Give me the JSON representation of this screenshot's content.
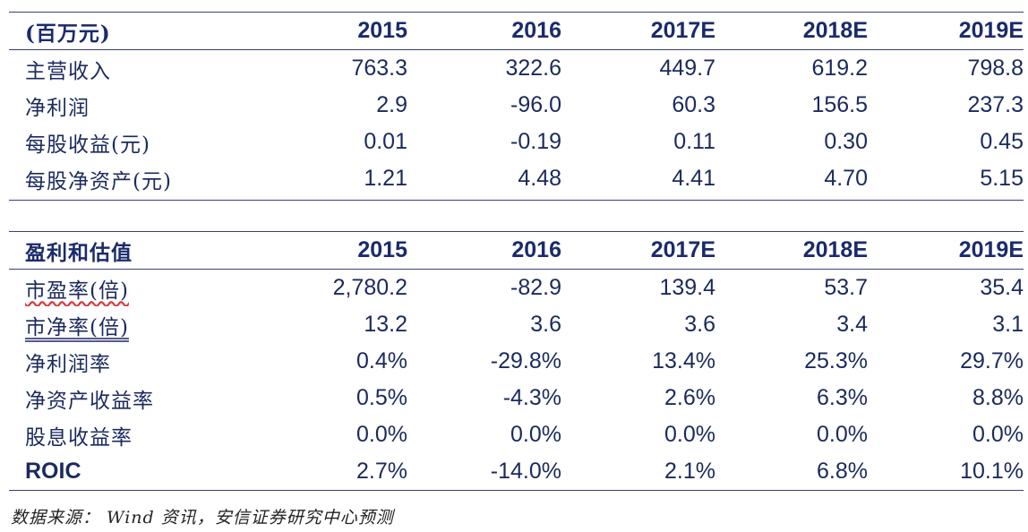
{
  "table1": {
    "header": [
      "(百万元)",
      "2015",
      "2016",
      "2017E",
      "2018E",
      "2019E"
    ],
    "rows": [
      {
        "label": "主营收入",
        "values": [
          "763.3",
          "322.6",
          "449.7",
          "619.2",
          "798.8"
        ]
      },
      {
        "label": "净利润",
        "values": [
          "2.9",
          "-96.0",
          "60.3",
          "156.5",
          "237.3"
        ]
      },
      {
        "label": "每股收益(元)",
        "values": [
          "0.01",
          "-0.19",
          "0.11",
          "0.30",
          "0.45"
        ]
      },
      {
        "label": "每股净资产(元)",
        "values": [
          "1.21",
          "4.48",
          "4.41",
          "4.70",
          "5.15"
        ]
      }
    ]
  },
  "table2": {
    "header": [
      "盈利和估值",
      "2015",
      "2016",
      "2017E",
      "2018E",
      "2019E"
    ],
    "rows": [
      {
        "label": "市盈率(倍)",
        "values": [
          "2,780.2",
          "-82.9",
          "139.4",
          "53.7",
          "35.4"
        ]
      },
      {
        "label": "市净率(倍)",
        "values": [
          "13.2",
          "3.6",
          "3.6",
          "3.4",
          "3.1"
        ]
      },
      {
        "label": "净利润率",
        "values": [
          "0.4%",
          "-29.8%",
          "13.4%",
          "25.3%",
          "29.7%"
        ]
      },
      {
        "label": "净资产收益率",
        "values": [
          "0.5%",
          "-4.3%",
          "2.6%",
          "6.3%",
          "8.8%"
        ]
      },
      {
        "label": "股息收益率",
        "values": [
          "0.0%",
          "0.0%",
          "0.0%",
          "0.0%",
          "0.0%"
        ]
      },
      {
        "label": "ROIC",
        "values": [
          "2.7%",
          "-14.0%",
          "2.1%",
          "6.8%",
          "10.1%"
        ]
      }
    ]
  },
  "source": "数据来源： Wind 资讯，安信证券研究中心预测",
  "colors": {
    "text": "#1b2a5e",
    "rule": "#3a3f7a"
  }
}
